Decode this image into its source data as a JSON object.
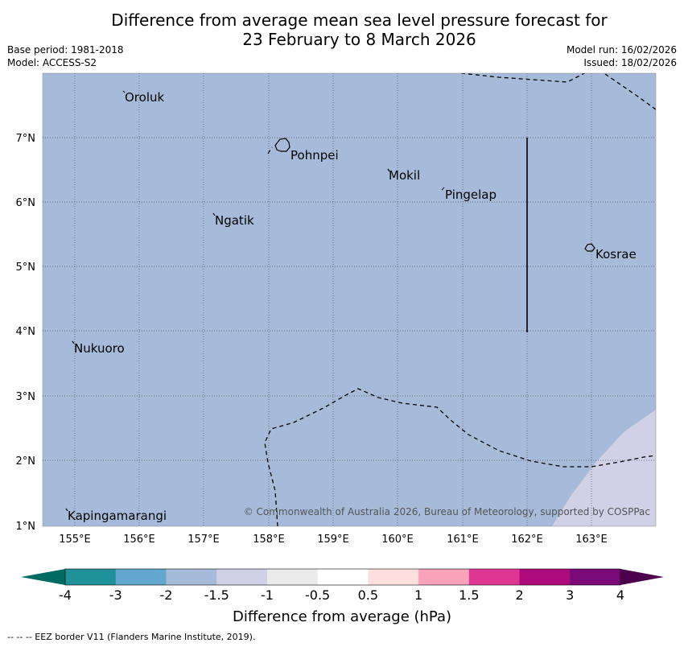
{
  "header": {
    "title_line1": "Difference from average mean sea level pressure forecast for",
    "title_line2": "23 February to 8 March 2026",
    "base_period": "Base period: 1981-2018",
    "model": "Model: ACCESS-S2",
    "model_run": "Model run: 16/02/2026",
    "issued": "Issued: 18/02/2026"
  },
  "map": {
    "lat_labels": [
      "7°N",
      "6°N",
      "5°N",
      "4°N",
      "3°N",
      "2°N",
      "1°N"
    ],
    "lon_labels": [
      "155°E",
      "156°E",
      "157°E",
      "158°E",
      "159°E",
      "160°E",
      "161°E",
      "162°E",
      "163°E"
    ],
    "places": {
      "oroluk": "Oroluk",
      "pohnpei": "Pohnpei",
      "mokil": "Mokil",
      "pingelap": "Pingelap",
      "ngatik": "Ngatik",
      "kosrae": "Kosrae",
      "nukuoro": "Nukuoro",
      "kapingamarangi": "Kapingamarangi"
    },
    "copyright": "© Commonwealth of Australia 2026, Bureau of Meteorology, supported by COSPPac",
    "colors": {
      "background_class": "#a6bbd9",
      "corner_class": "#d0d0e6"
    }
  },
  "colorbar": {
    "ticks": [
      "-4",
      "-3",
      "-2",
      "-1.5",
      "-1",
      "-0.5",
      "0.5",
      "1",
      "1.5",
      "2",
      "3",
      "4"
    ],
    "colors": [
      "#1f9198",
      "#63a6ce",
      "#a6bbd9",
      "#d0d0e6",
      "#ebebeb",
      "#ffffff",
      "#fde0dd",
      "#f9a2b9",
      "#df3693",
      "#ad0a7c",
      "#7a0a78"
    ],
    "under_color": "#006b63",
    "over_color": "#4d004b",
    "label": "Difference from average (hPa)"
  },
  "footer": {
    "legend": "--  --  -- EEZ border V11 (Flanders Marine Institute, 2019)."
  }
}
